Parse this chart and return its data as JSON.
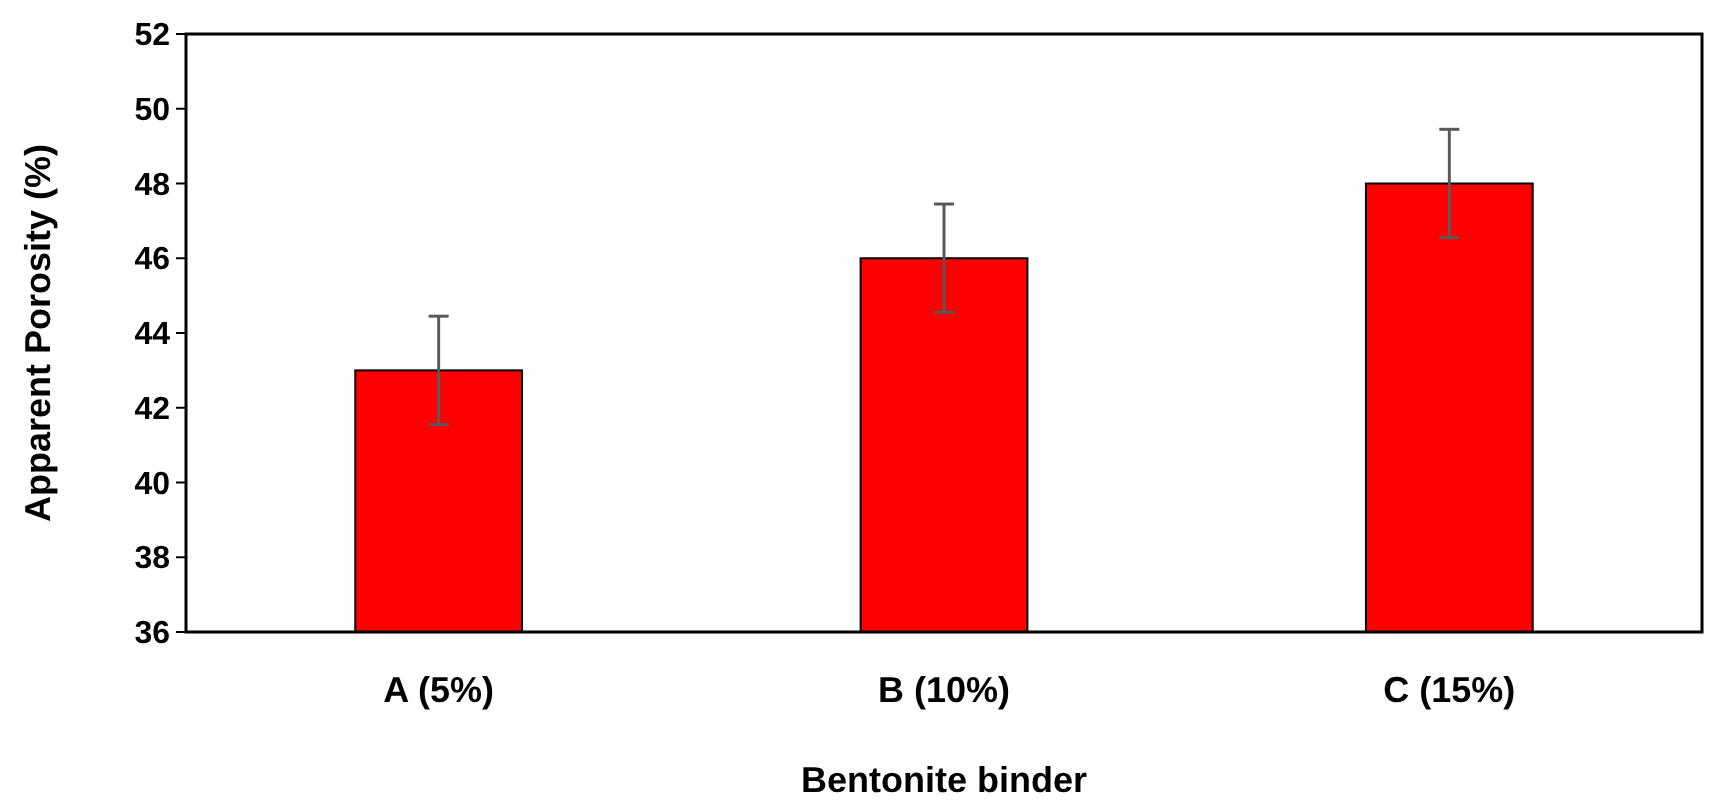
{
  "chart_data": {
    "type": "bar",
    "xlabel": "Bentonite binder",
    "ylabel": "Apparent Porosity (%)",
    "categories": [
      "A (5%)",
      "B (10%)",
      "C (15%)"
    ],
    "values": [
      43,
      46,
      48
    ],
    "errors": [
      1.45,
      1.45,
      1.45
    ],
    "color": "#ff0000",
    "ylim": [
      36,
      52
    ],
    "yticks": [
      36,
      38,
      40,
      42,
      44,
      46,
      48,
      50,
      52
    ]
  }
}
